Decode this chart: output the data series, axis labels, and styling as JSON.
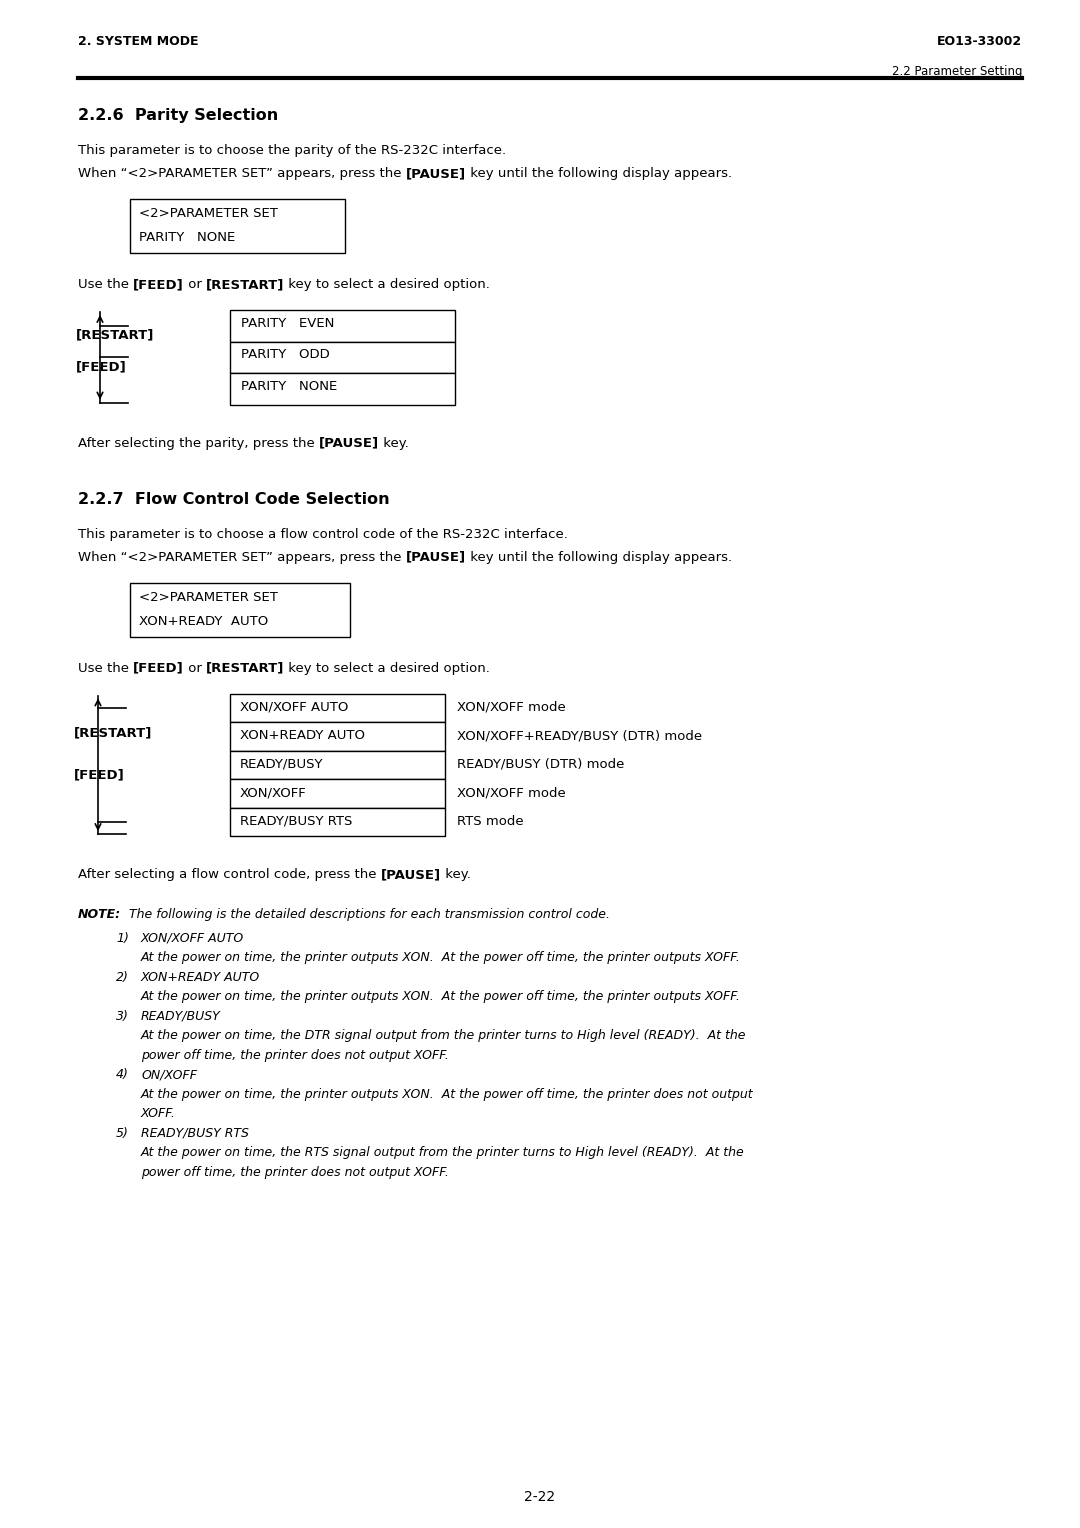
{
  "bg_color": "#ffffff",
  "page_width": 10.8,
  "page_height": 15.28,
  "header_left": "2. SYSTEM MODE",
  "header_right": "EO13-33002",
  "subheader_right": "2.2 Parameter Setting",
  "section1_title": "2.2.6  Parity Selection",
  "section1_para1": "This parameter is to choose the parity of the RS-232C interface.",
  "section1_para2": [
    [
      "When “<2>PARAMETER SET” appears, press the ",
      false,
      false
    ],
    [
      "[PAUSE]",
      true,
      false
    ],
    [
      " key until the following display appears.",
      false,
      false
    ]
  ],
  "section1_box1_line1": "<2>PARAMETER SET",
  "section1_box1_line2": "PARITY   NONE",
  "use_line": [
    [
      "Use the ",
      false,
      false
    ],
    [
      "[FEED]",
      true,
      false
    ],
    [
      " or ",
      false,
      false
    ],
    [
      "[RESTART]",
      true,
      false
    ],
    [
      " key to select a desired option.",
      false,
      false
    ]
  ],
  "parity_options": [
    "PARITY   EVEN",
    "PARITY   ODD",
    "PARITY   NONE"
  ],
  "after_parity": [
    [
      "After selecting the parity, press the ",
      false,
      false
    ],
    [
      "[PAUSE]",
      true,
      false
    ],
    [
      " key.",
      false,
      false
    ]
  ],
  "section2_title": "2.2.7  Flow Control Code Selection",
  "section2_para1": "This parameter is to choose a flow control code of the RS-232C interface.",
  "section2_para2": [
    [
      "When “<2>PARAMETER SET” appears, press the ",
      false,
      false
    ],
    [
      "[PAUSE]",
      true,
      false
    ],
    [
      " key until the following display appears.",
      false,
      false
    ]
  ],
  "section2_box1_line1": "<2>PARAMETER SET",
  "section2_box1_line2": "XON+READY  AUTO",
  "use_line2": [
    [
      "Use the ",
      false,
      false
    ],
    [
      "[FEED]",
      true,
      false
    ],
    [
      " or ",
      false,
      false
    ],
    [
      "[RESTART]",
      true,
      false
    ],
    [
      " key to select a desired option.",
      false,
      false
    ]
  ],
  "flow_options": [
    [
      "XON/XOFF AUTO",
      "XON/XOFF mode"
    ],
    [
      "XON+READY AUTO",
      "XON/XOFF+READY/BUSY (DTR) mode"
    ],
    [
      "READY/BUSY",
      "READY/BUSY (DTR) mode"
    ],
    [
      "XON/XOFF",
      "XON/XOFF mode"
    ],
    [
      "READY/BUSY RTS",
      "RTS mode"
    ]
  ],
  "after_flow": [
    [
      "After selecting a flow control code, press the ",
      false,
      false
    ],
    [
      "[PAUSE]",
      true,
      false
    ],
    [
      " key.",
      false,
      false
    ]
  ],
  "note_label": "NOTE:",
  "note_intro": "  The following is the detailed descriptions for each transmission control code.",
  "note_items": [
    {
      "num": "1)",
      "title": "XON/XOFF AUTO",
      "desc": "At the power on time, the printer outputs XON.  At the power off time, the printer outputs XOFF."
    },
    {
      "num": "2)",
      "title": "XON+READY AUTO",
      "desc": "At the power on time, the printer outputs XON.  At the power off time, the printer outputs XOFF."
    },
    {
      "num": "3)",
      "title": "READY/BUSY",
      "desc_lines": [
        "At the power on time, the DTR signal output from the printer turns to High level (READY).  At the",
        "power off time, the printer does not output XOFF."
      ]
    },
    {
      "num": "4)",
      "title": "ON/XOFF",
      "desc_lines": [
        "At the power on time, the printer outputs XON.  At the power off time, the printer does not output",
        "XOFF."
      ]
    },
    {
      "num": "5)",
      "title": "READY/BUSY RTS",
      "desc_lines": [
        "At the power on time, the RTS signal output from the printer turns to High level (READY).  At the",
        "power off time, the printer does not output XOFF."
      ]
    }
  ],
  "footer_text": "2-22"
}
